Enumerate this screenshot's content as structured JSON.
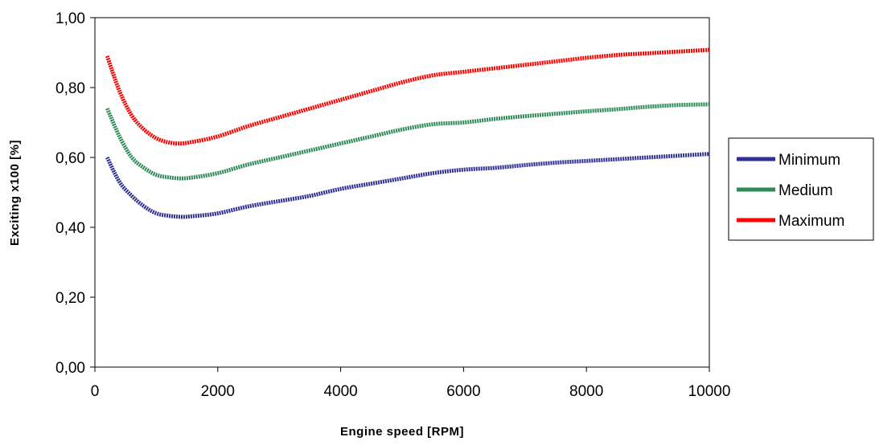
{
  "chart_data": {
    "type": "line",
    "title": "",
    "xlabel": "Engine speed [RPM]",
    "ylabel": "Exciting x100 [%]",
    "xlim": [
      0,
      10000
    ],
    "ylim": [
      0,
      1
    ],
    "x_ticks": [
      "0",
      "2000",
      "4000",
      "6000",
      "8000",
      "10000"
    ],
    "y_ticks": [
      "0,00",
      "0,20",
      "0,40",
      "0,60",
      "0,80",
      "1,00"
    ],
    "grid": false,
    "legend_position": "right",
    "x": [
      200,
      400,
      600,
      800,
      1000,
      1200,
      1400,
      1600,
      2000,
      2500,
      3000,
      3500,
      4000,
      4500,
      5000,
      5500,
      6000,
      6500,
      7000,
      7500,
      8000,
      8500,
      9000,
      9500,
      10000
    ],
    "series": [
      {
        "name": "Minimum",
        "color": "#2E3192",
        "values": [
          0.6,
          0.53,
          0.49,
          0.46,
          0.44,
          0.433,
          0.43,
          0.432,
          0.44,
          0.46,
          0.475,
          0.49,
          0.51,
          0.525,
          0.54,
          0.555,
          0.565,
          0.57,
          0.578,
          0.585,
          0.59,
          0.595,
          0.6,
          0.605,
          0.61
        ]
      },
      {
        "name": "Medium",
        "color": "#2E8B57",
        "values": [
          0.74,
          0.66,
          0.6,
          0.57,
          0.55,
          0.543,
          0.54,
          0.543,
          0.555,
          0.58,
          0.6,
          0.62,
          0.64,
          0.66,
          0.68,
          0.695,
          0.7,
          0.71,
          0.718,
          0.725,
          0.732,
          0.738,
          0.745,
          0.75,
          0.752
        ]
      },
      {
        "name": "Maximum",
        "color": "#FF0000",
        "values": [
          0.89,
          0.79,
          0.72,
          0.68,
          0.655,
          0.643,
          0.64,
          0.645,
          0.66,
          0.69,
          0.715,
          0.74,
          0.765,
          0.79,
          0.815,
          0.835,
          0.845,
          0.855,
          0.865,
          0.875,
          0.885,
          0.893,
          0.898,
          0.903,
          0.908
        ]
      }
    ]
  }
}
